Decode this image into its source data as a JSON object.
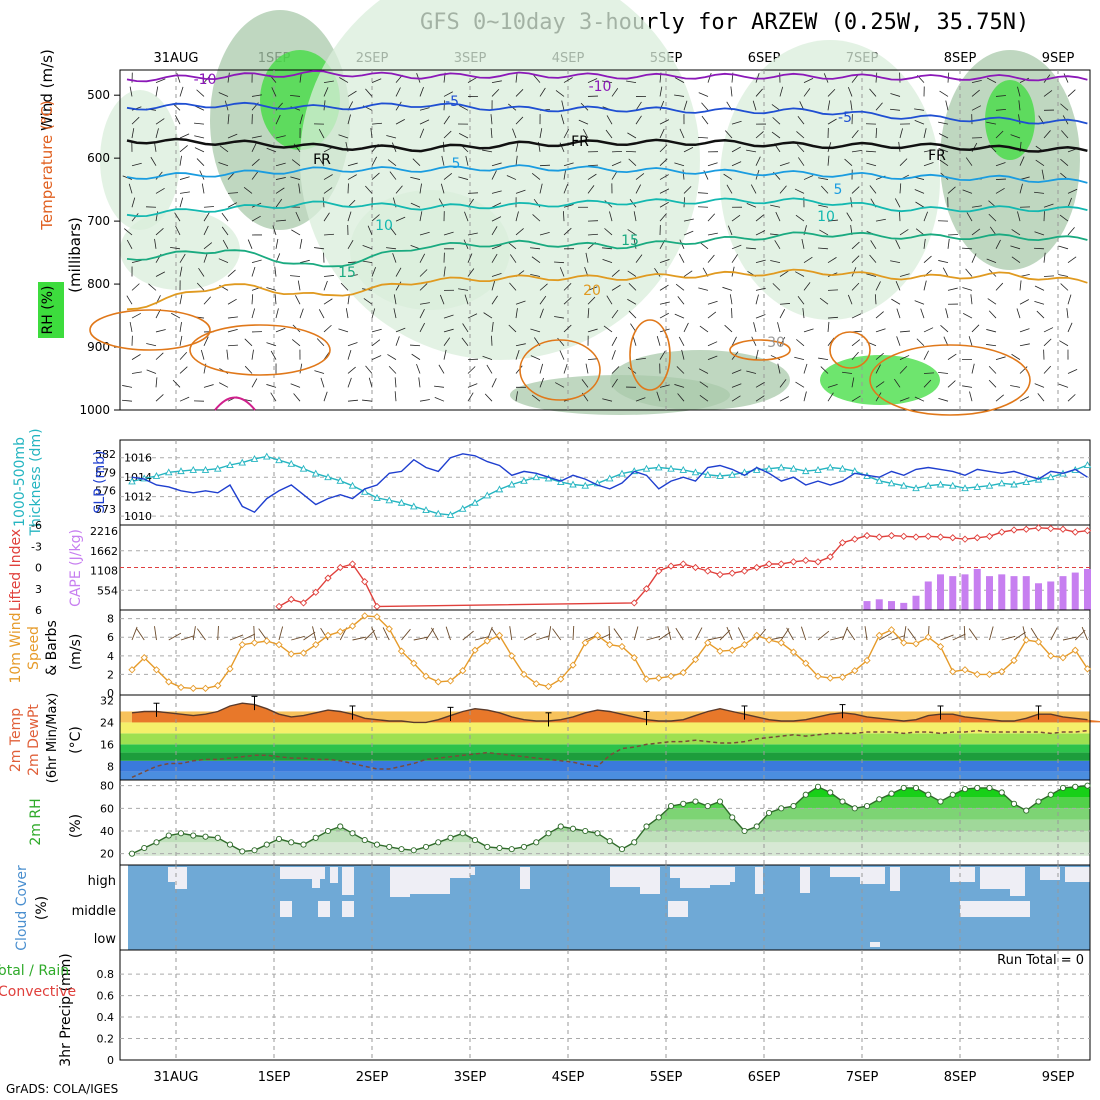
{
  "title": "GFS 0~10day 3-hourly for ARZEW (0.25W, 35.75N)",
  "credit": "GrADS: COLA/IGES",
  "colors": {
    "rh_light": "#d9eddb",
    "rh_mid": "#a9c9ab",
    "rh_dark": "#6ea870",
    "rh_bright": "#3ddc3d",
    "slp": "#1f3fcf",
    "thickness": "#25b5c1",
    "lifted_index": "#e0403c",
    "cape": "#c77ff0",
    "wind10m": "#e69b2a",
    "temp_fill": "#e8782a",
    "dew_line": "#7a4b3a",
    "rh_line": "#2faa2a",
    "cloud_bg": "#6fa9d6",
    "cloud_fill": "#eeeef5"
  },
  "chart_data": [
    {
      "panel": "upper-air",
      "type": "heatmap",
      "x_labels": [
        "31AUG",
        "1SEP",
        "2SEP",
        "3SEP",
        "4SEP",
        "5SEP",
        "6SEP",
        "7SEP",
        "8SEP",
        "9SEP"
      ],
      "ylabel": "(millibars)",
      "y_ticks": [
        500,
        600,
        700,
        800,
        900,
        1000
      ],
      "legend": [
        "Wind (m/s)",
        "Temperature (°C)",
        "RH (%)"
      ],
      "isotherms": [
        {
          "label": "-10",
          "pressure_by_day": [
            475,
            470,
            465,
            470,
            468,
            470,
            470,
            470,
            472,
            472,
            475
          ]
        },
        {
          "label": "-5",
          "pressure_by_day": [
            520,
            515,
            520,
            515,
            522,
            522,
            525,
            525,
            535,
            540,
            545
          ]
        },
        {
          "label": "FR",
          "pressure_by_day": [
            572,
            575,
            582,
            585,
            578,
            575,
            575,
            580,
            580,
            585,
            588
          ]
        },
        {
          "label": "5",
          "pressure_by_day": [
            630,
            625,
            618,
            618,
            615,
            618,
            622,
            625,
            630,
            632,
            640
          ]
        },
        {
          "label": "10",
          "pressure_by_day": [
            690,
            680,
            672,
            678,
            675,
            670,
            668,
            668,
            682,
            680,
            682
          ]
        },
        {
          "label": "15",
          "pressure_by_day": [
            760,
            745,
            775,
            740,
            735,
            740,
            730,
            720,
            725,
            725,
            730
          ]
        },
        {
          "label": "20",
          "pressure_by_day": [
            840,
            800,
            820,
            795,
            790,
            790,
            785,
            780,
            790,
            785,
            800
          ]
        }
      ],
      "annotations": [
        "-10",
        "-5",
        "FR",
        "5",
        "10",
        "15",
        "20",
        "30"
      ]
    },
    {
      "panel": "thickness-slp",
      "type": "line",
      "left_label": "1000-500mb Thickness (dm)",
      "right_label": "SLP (mb)",
      "left_ticks": [
        "582",
        "579",
        "576",
        "573"
      ],
      "right_ticks": [
        "1016",
        "1014",
        "1012",
        "1010"
      ],
      "series": [
        {
          "name": "SLP",
          "unit": "mb",
          "values": [
            1014.0,
            1013.8,
            1013.2,
            1013.0,
            1012.6,
            1012.4,
            1012.6,
            1012.4,
            1013.2,
            1011.0,
            1010.4,
            1011.8,
            1012.6,
            1013.2,
            1012.2,
            1011.2,
            1011.8,
            1012.2,
            1011.8,
            1012.8,
            1013.2,
            1014.4,
            1014.6,
            1015.8,
            1015.0,
            1014.6,
            1016.0,
            1016.4,
            1016.2,
            1015.6,
            1015.2,
            1014.2,
            1014.6,
            1014.4,
            1014.0,
            1013.6,
            1014.2,
            1013.8,
            1013.2,
            1012.8,
            1013.4,
            1014.6,
            1014.2,
            1012.8,
            1013.6,
            1014.0,
            1013.6,
            1015.0,
            1015.2,
            1014.8,
            1014.2,
            1015.0,
            1014.4,
            1013.6,
            1014.0,
            1013.2,
            1013.6,
            1013.2,
            1013.6,
            1014.4,
            1014.2,
            1014.0,
            1014.6,
            1014.2,
            1014.8,
            1015.0,
            1014.8,
            1014.6,
            1014.2,
            1014.8,
            1014.6,
            1014.4,
            1014.6,
            1014.2,
            1013.8,
            1014.6,
            1014.4,
            1014.8,
            1014.0,
            1014.6,
            1014.4,
            1015.0,
            1014.4,
            1015.2,
            1015.0,
            1014.0,
            1014.4,
            1014.8,
            1015.2,
            1015.8,
            1015.6,
            1015.2,
            1014.8,
            1015.6
          ]
        },
        {
          "name": "Thickness",
          "unit": "dm",
          "values": [
            577.5,
            578.0,
            578.4,
            579.0,
            579.2,
            579.4,
            579.4,
            579.6,
            580.2,
            580.6,
            581.2,
            581.6,
            581.0,
            580.4,
            579.6,
            578.8,
            578.2,
            577.6,
            576.8,
            575.8,
            574.8,
            574.4,
            574.0,
            573.4,
            572.8,
            572.2,
            572.0,
            573.0,
            574.0,
            575.2,
            576.2,
            577.0,
            577.6,
            578.2,
            578.0,
            577.4,
            577.0,
            576.8,
            577.2,
            578.0,
            578.8,
            579.2,
            579.6,
            579.8,
            579.6,
            579.4,
            579.0,
            578.6,
            578.4,
            578.6,
            579.0,
            579.4,
            579.6,
            579.8,
            579.6,
            579.2,
            579.4,
            579.8,
            579.6,
            579.2,
            578.4,
            577.6,
            577.2,
            576.8,
            576.4,
            576.8,
            577.0,
            576.8,
            576.4,
            576.6,
            576.8,
            577.2,
            577.0,
            577.4,
            577.8,
            578.2,
            578.8,
            579.4,
            580.2,
            580.8,
            581.0,
            580.6,
            580.2,
            579.8,
            579.4,
            579.0,
            578.4,
            578.8,
            579.4,
            579.6,
            579.0,
            578.4,
            577.8,
            577.2
          ]
        }
      ]
    },
    {
      "panel": "instability",
      "type": "bar",
      "left_label": "Lifted Index",
      "right_label": "CAPE (J/kg)",
      "left_ticks": [
        "-6",
        "-3",
        "0",
        "3",
        "6"
      ],
      "right_ticks": [
        "2216",
        "1662",
        "1108",
        "554"
      ],
      "series": [
        {
          "name": "CAPE",
          "unit": "J/kg",
          "values": [
            0,
            0,
            0,
            0,
            0,
            0,
            0,
            0,
            0,
            0,
            0,
            0,
            0,
            0,
            0,
            0,
            0,
            0,
            0,
            0,
            0,
            0,
            0,
            0,
            0,
            0,
            0,
            0,
            0,
            0,
            0,
            0,
            0,
            0,
            0,
            0,
            0,
            0,
            0,
            0,
            0,
            0,
            0,
            0,
            0,
            0,
            0,
            0,
            0,
            0,
            0,
            0,
            0,
            0,
            0,
            0,
            0,
            0,
            0,
            0,
            250,
            300,
            250,
            200,
            400,
            800,
            1000,
            950,
            1000,
            1150,
            950,
            1000,
            950,
            950,
            750,
            800,
            950,
            1050,
            1150,
            950,
            850,
            1200,
            1250,
            1200,
            1350,
            1600,
            1650,
            1700,
            1600,
            1800,
            1950,
            1950,
            2000,
            1950,
            1700,
            1450,
            1200,
            1300,
            1250
          ]
        },
        {
          "name": "Lifted Index",
          "values": [
            null,
            null,
            null,
            null,
            null,
            null,
            null,
            null,
            null,
            null,
            null,
            null,
            5.5,
            4.5,
            5.0,
            3.5,
            1.5,
            0.0,
            -0.5,
            2.0,
            5.5,
            null,
            null,
            null,
            null,
            null,
            null,
            null,
            null,
            null,
            null,
            null,
            null,
            null,
            null,
            null,
            null,
            null,
            null,
            null,
            null,
            5.0,
            3.0,
            0.5,
            -0.2,
            -0.5,
            0.0,
            0.5,
            1.0,
            0.8,
            0.5,
            0.0,
            -0.5,
            -0.5,
            -0.8,
            -1.0,
            -0.8,
            -1.5,
            -3.5,
            -4.0,
            -4.5,
            -4.3,
            -4.5,
            -4.4,
            -4.3,
            -4.4,
            -4.3,
            -4.2,
            -4.0,
            -4.2,
            -4.4,
            -5.0,
            -5.3,
            -5.4,
            -5.6,
            -5.5,
            -5.4,
            -5.0,
            -5.2,
            -5.5,
            -5.8,
            -6.0,
            -5.8,
            -5.7,
            -5.9,
            -6.0,
            -6.0,
            -5.5,
            -5.2,
            -5.0,
            -5.5
          ]
        }
      ]
    },
    {
      "panel": "wind10m",
      "type": "line",
      "left_label": "10m Wind Speed & Barbs",
      "ylabel": "(m/s)",
      "y_ticks": [
        "8",
        "6",
        "4",
        "2",
        "0"
      ],
      "ylim": [
        0,
        8.5
      ],
      "series": [
        {
          "name": "10m Wind Speed",
          "unit": "m/s",
          "values": [
            2.5,
            3.8,
            2.5,
            1.2,
            0.6,
            0.5,
            0.5,
            0.8,
            2.6,
            5.2,
            5.4,
            5.6,
            5.2,
            4.2,
            4.3,
            5.2,
            6.2,
            6.6,
            7.2,
            8.3,
            8.2,
            6.9,
            4.5,
            3.2,
            1.8,
            1.2,
            1.3,
            2.4,
            4.6,
            5.6,
            6.2,
            4.0,
            2.0,
            1.0,
            0.7,
            1.5,
            3.0,
            5.4,
            6.2,
            5.2,
            5.0,
            3.8,
            1.5,
            1.6,
            1.8,
            2.2,
            3.6,
            5.4,
            4.5,
            4.6,
            5.2,
            6.2,
            5.7,
            5.4,
            4.4,
            3.2,
            1.8,
            1.6,
            1.7,
            2.4,
            3.5,
            6.2,
            6.8,
            5.4,
            5.3,
            6.0,
            5.0,
            2.3,
            2.5,
            2.0,
            2.0,
            2.3,
            3.5,
            5.7,
            5.5,
            4.0,
            3.8,
            4.6,
            2.6,
            1.7,
            2.0,
            2.4,
            3.0,
            5.7,
            6.2,
            4.1,
            3.9,
            5.0,
            3.3,
            1.3,
            1.2,
            2.8,
            3.4,
            6.0,
            6.2,
            3.4,
            3.2,
            3.6,
            4.0,
            2.5,
            1.0,
            1.5
          ]
        }
      ]
    },
    {
      "panel": "temperature",
      "type": "area",
      "left_label": "2m Temp 2m DewPt (6hr Min/Max)",
      "ylabel": "(°C)",
      "y_ticks": [
        "32",
        "24",
        "16",
        "8"
      ],
      "ylim": [
        3,
        34
      ],
      "series": [
        {
          "name": "2m Temp",
          "unit": "°C",
          "values": [
            27.5,
            28,
            28,
            27.5,
            27,
            26.5,
            27,
            28,
            30,
            31,
            30.5,
            29,
            27,
            26,
            26.5,
            27.5,
            28.5,
            28,
            27,
            25.5,
            25,
            24.5,
            24.5,
            24,
            24,
            25,
            26.5,
            28,
            29,
            28.5,
            27.5,
            26,
            25,
            24.5,
            24.5,
            25,
            26,
            27.5,
            28.5,
            28,
            27,
            26,
            25,
            24.5,
            24.5,
            25,
            26.5,
            28,
            29,
            28,
            27,
            26,
            25,
            24.5,
            24.5,
            25,
            26,
            27,
            27.5,
            27,
            26,
            25.5,
            25,
            24.5,
            25,
            26.5,
            27,
            27,
            26,
            25.5,
            25,
            24.5,
            24.5,
            25.5,
            27,
            27,
            26,
            25.5,
            25,
            24.5,
            25.5,
            27,
            28.5,
            28,
            27,
            26,
            25.5,
            25.5,
            26.5,
            28,
            28.5,
            27.5,
            26,
            25.5,
            26,
            27,
            26.5,
            26
          ]
        },
        {
          "name": "2m DewPt",
          "unit": "°C",
          "values": [
            4,
            6,
            8,
            9,
            9,
            10,
            10.5,
            10.5,
            11,
            11.5,
            12,
            12,
            11.5,
            11,
            11,
            10.5,
            10.5,
            10,
            9,
            8,
            7,
            7,
            8,
            9,
            10.5,
            11,
            11.5,
            12,
            12.5,
            13,
            12.5,
            12,
            11.5,
            11,
            10.5,
            10,
            9.5,
            8.5,
            8,
            12,
            14.5,
            15,
            16,
            16.5,
            17,
            17,
            17.5,
            17,
            16.5,
            16.5,
            17,
            18,
            18.5,
            19,
            19.5,
            19,
            19.5,
            20,
            20,
            20,
            20.5,
            20.5,
            20.5,
            20,
            20.5,
            20.5,
            20,
            20.5,
            20.5,
            21,
            20.5,
            20.5,
            20.5,
            20.5,
            20.5,
            20,
            20.5,
            20.5,
            21,
            21,
            20.5,
            20.5,
            20.5,
            21,
            21,
            20.5,
            21,
            21,
            21
          ]
        }
      ]
    },
    {
      "panel": "rh2m",
      "type": "area",
      "left_label": "2m RH",
      "ylabel": "(%)",
      "y_ticks": [
        "80",
        "60",
        "40",
        "20"
      ],
      "ylim": [
        10,
        85
      ],
      "series": [
        {
          "name": "2m RH",
          "unit": "%",
          "values": [
            20,
            25,
            30,
            36,
            38,
            36,
            35,
            34,
            28,
            22,
            23,
            28,
            33,
            30,
            28,
            34,
            40,
            44,
            38,
            32,
            28,
            26,
            24,
            23,
            26,
            30,
            34,
            38,
            32,
            26,
            25,
            24,
            26,
            30,
            38,
            44,
            42,
            40,
            38,
            31,
            24,
            30,
            44,
            52,
            62,
            64,
            66,
            62,
            66,
            52,
            40,
            44,
            56,
            60,
            62,
            72,
            79,
            74,
            66,
            60,
            62,
            68,
            73,
            78,
            78,
            72,
            66,
            72,
            77,
            78,
            78,
            74,
            64,
            58,
            66,
            72,
            78,
            79,
            80,
            76,
            66,
            62,
            66,
            72,
            76,
            74,
            76,
            80,
            78,
            70,
            64,
            62,
            60,
            68,
            72,
            70,
            72,
            76,
            78
          ]
        }
      ]
    },
    {
      "panel": "cloud-cover",
      "type": "heatmap",
      "left_label": "Cloud Cover",
      "ylabel": "(%)",
      "rows": [
        "high",
        "middle",
        "low"
      ]
    },
    {
      "panel": "precip",
      "type": "bar",
      "left_label": "Total / Rain Convective",
      "ylabel": "3hr Precip (mm)",
      "y_ticks": [
        "0.8",
        "0.6",
        "0.4",
        "0.2",
        "0"
      ],
      "ylim": [
        0,
        1
      ],
      "annotation": "Run Total = 0",
      "values": []
    }
  ]
}
